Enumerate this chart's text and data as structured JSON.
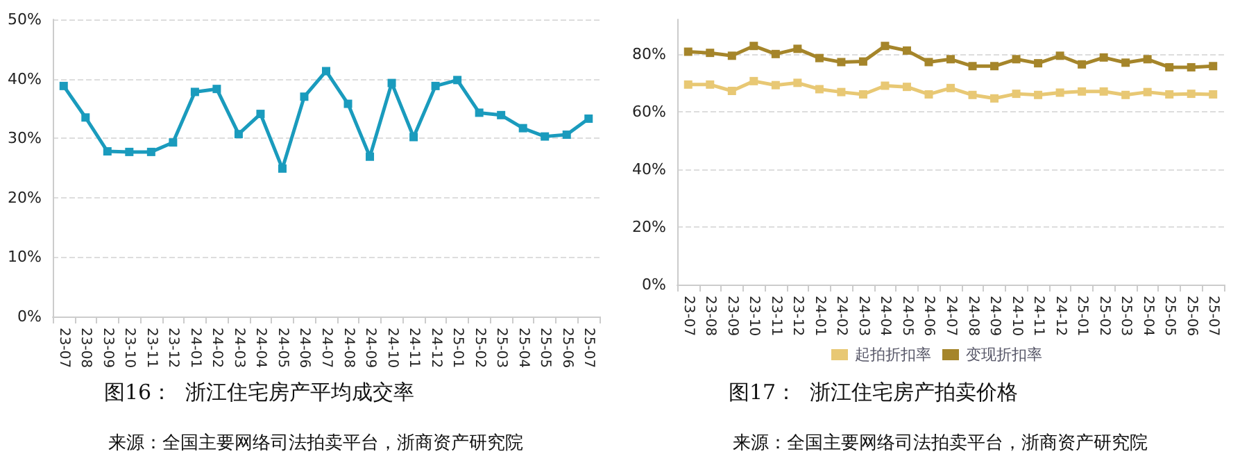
{
  "chart_data": [
    {
      "type": "line",
      "title": "图16：  浙江住宅房产平均成交率",
      "annotations": [
        "来源：全国主要网络司法拍卖平台，浙商资产研究院"
      ],
      "categories": [
        "23-07",
        "23-08",
        "23-09",
        "23-10",
        "23-11",
        "23-12",
        "24-01",
        "24-02",
        "24-03",
        "24-04",
        "24-05",
        "24-06",
        "24-07",
        "24-08",
        "24-09",
        "24-10",
        "24-11",
        "24-12",
        "25-01",
        "25-02",
        "25-03",
        "25-04",
        "25-05",
        "25-06",
        "25-07"
      ],
      "series": [
        {
          "color": "#1a9bbd",
          "values": [
            38.8,
            33.5,
            27.8,
            27.7,
            27.7,
            29.3,
            37.8,
            38.3,
            30.7,
            34.1,
            24.9,
            37.0,
            41.3,
            35.8,
            26.9,
            39.3,
            30.2,
            38.8,
            39.8,
            34.3,
            33.9,
            31.7,
            30.3,
            30.6,
            33.3
          ]
        }
      ],
      "ylim": [
        0,
        50
      ],
      "yticks": [
        {
          "value": 0,
          "label": "0%"
        },
        {
          "value": 10,
          "label": "10%"
        },
        {
          "value": 20,
          "label": "20%"
        },
        {
          "value": 30,
          "label": "30%"
        },
        {
          "value": 40,
          "label": "40%"
        },
        {
          "value": 50,
          "label": "50%"
        }
      ],
      "grid": "y",
      "marker": "square",
      "line_style": "solid"
    },
    {
      "type": "line",
      "title": "图17：  浙江住宅房产拍卖价格",
      "annotations": [
        "来源：全国主要网络司法拍卖平台，浙商资产研究院"
      ],
      "categories": [
        "23-07",
        "23-08",
        "23-09",
        "23-10",
        "23-11",
        "23-12",
        "24-01",
        "24-02",
        "24-03",
        "24-04",
        "24-05",
        "24-06",
        "24-07",
        "24-08",
        "24-09",
        "24-10",
        "24-11",
        "24-12",
        "25-01",
        "25-02",
        "25-03",
        "25-04",
        "25-05",
        "25-06",
        "25-07"
      ],
      "series": [
        {
          "name": "起拍折扣率",
          "color": "#e8c874",
          "values": [
            69.4,
            69.4,
            67.2,
            70.6,
            69.2,
            70.0,
            67.8,
            66.8,
            66.0,
            69.0,
            68.6,
            66.0,
            68.2,
            65.8,
            64.6,
            66.2,
            65.8,
            66.6,
            67.0,
            67.0,
            65.8,
            66.8,
            66.0,
            66.2,
            66.0
          ]
        },
        {
          "name": "变现折扣率",
          "color": "#a5852a",
          "values": [
            80.8,
            80.4,
            79.4,
            82.8,
            80.0,
            81.8,
            78.6,
            77.2,
            77.4,
            82.8,
            81.2,
            77.2,
            78.2,
            75.8,
            75.8,
            78.2,
            76.8,
            79.4,
            76.4,
            78.8,
            77.0,
            78.2,
            75.4,
            75.4,
            75.8
          ]
        }
      ],
      "ylim": [
        0,
        92
      ],
      "yticks": [
        {
          "value": 0,
          "label": "0%"
        },
        {
          "value": 20,
          "label": "20%"
        },
        {
          "value": 40,
          "label": "40%"
        },
        {
          "value": 60,
          "label": "60%"
        },
        {
          "value": 80,
          "label": "80%"
        }
      ],
      "grid": "y",
      "marker": "square",
      "line_style": "solid",
      "legend": "bottom"
    }
  ]
}
